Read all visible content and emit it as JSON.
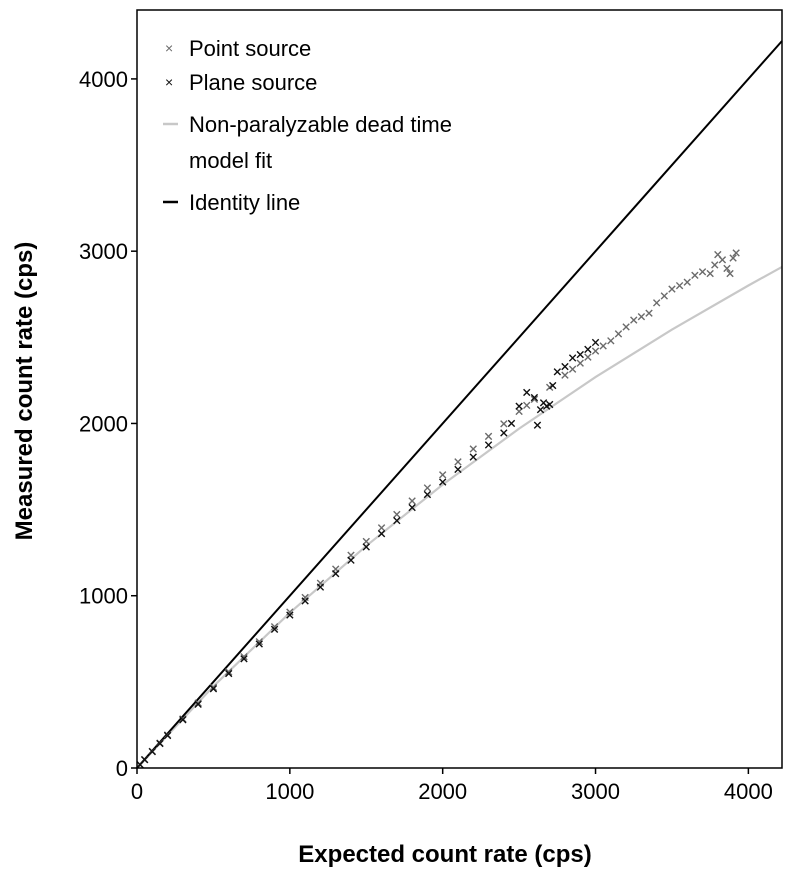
{
  "chart_data": {
    "type": "scatter",
    "xlabel": "Expected count rate (cps)",
    "ylabel": "Measured count rate (cps)",
    "xlim": [
      0,
      4220
    ],
    "ylim": [
      0,
      4400
    ],
    "xticks": [
      "0",
      "1000",
      "2000",
      "3000",
      "4000"
    ],
    "yticks": [
      "0",
      "1000",
      "2000",
      "3000",
      "4000"
    ],
    "xtick_values": [
      0,
      1000,
      2000,
      3000,
      4000
    ],
    "ytick_values": [
      0,
      1000,
      2000,
      3000,
      4000
    ],
    "grid": false,
    "legend_position": "top-left",
    "legend": [
      {
        "label": "Point source",
        "marker": "x",
        "color": "#6b6b6b"
      },
      {
        "label": "Plane source",
        "marker": "x",
        "color": "#111111"
      },
      {
        "label": "Non-paralyzable dead time",
        "label2": "model fit",
        "marker": "line",
        "color": "#c8c8c8"
      },
      {
        "label": "Identity line",
        "marker": "line",
        "color": "#000000"
      }
    ],
    "series": [
      {
        "name": "Point source",
        "marker": "x",
        "color": "#6b6b6b",
        "x": [
          20,
          50,
          100,
          150,
          200,
          300,
          400,
          500,
          600,
          700,
          800,
          900,
          1000,
          1100,
          1200,
          1300,
          1400,
          1500,
          1600,
          1700,
          1800,
          1900,
          2000,
          2100,
          2200,
          2300,
          2400,
          2500,
          2550,
          2600,
          2700,
          2800,
          2850,
          2900,
          2950,
          3000,
          3050,
          3100,
          3150,
          3200,
          3250,
          3300,
          3350,
          3400,
          3450,
          3500,
          3550,
          3600,
          3650,
          3700,
          3750,
          3780,
          3800,
          3830,
          3860,
          3880,
          3900,
          3920
        ],
        "y": [
          20,
          49,
          97,
          145,
          192,
          285,
          377,
          468,
          558,
          646,
          733,
          820,
          905,
          990,
          1073,
          1155,
          1235,
          1315,
          1394,
          1472,
          1550,
          1626,
          1702,
          1777,
          1852,
          1925,
          1998,
          2070,
          2105,
          2140,
          2210,
          2280,
          2315,
          2350,
          2385,
          2420,
          2450,
          2480,
          2520,
          2560,
          2600,
          2620,
          2640,
          2700,
          2740,
          2780,
          2800,
          2820,
          2860,
          2880,
          2870,
          2920,
          2980,
          2950,
          2900,
          2870,
          2960,
          2990
        ]
      },
      {
        "name": "Plane source",
        "marker": "x",
        "color": "#111111",
        "x": [
          20,
          50,
          100,
          150,
          200,
          300,
          400,
          500,
          600,
          700,
          800,
          900,
          1000,
          1100,
          1200,
          1300,
          1400,
          1500,
          1600,
          1700,
          1800,
          1900,
          2000,
          2100,
          2200,
          2300,
          2400,
          2450,
          2500,
          2550,
          2600,
          2620,
          2640,
          2660,
          2680,
          2700,
          2720,
          2750,
          2800,
          2850,
          2900,
          2950,
          3000
        ],
        "y": [
          19,
          48,
          95,
          142,
          188,
          280,
          370,
          460,
          548,
          634,
          720,
          805,
          888,
          970,
          1050,
          1128,
          1206,
          1283,
          1360,
          1436,
          1512,
          1587,
          1660,
          1733,
          1805,
          1875,
          1945,
          2000,
          2100,
          2180,
          2150,
          1990,
          2080,
          2120,
          2100,
          2110,
          2220,
          2300,
          2330,
          2380,
          2400,
          2430,
          2470
        ]
      },
      {
        "name": "Non-paralyzable dead time model fit",
        "type": "line",
        "color": "#c8c8c8",
        "x": [
          0,
          500,
          1000,
          1500,
          2000,
          2500,
          3000,
          3500,
          4000,
          4220
        ],
        "y": [
          0,
          474,
          901,
          1290,
          1645,
          1970,
          2269,
          2545,
          2801,
          2909
        ]
      },
      {
        "name": "Identity line",
        "type": "line",
        "color": "#000000",
        "x": [
          0,
          4220
        ],
        "y": [
          0,
          4220
        ]
      }
    ]
  }
}
